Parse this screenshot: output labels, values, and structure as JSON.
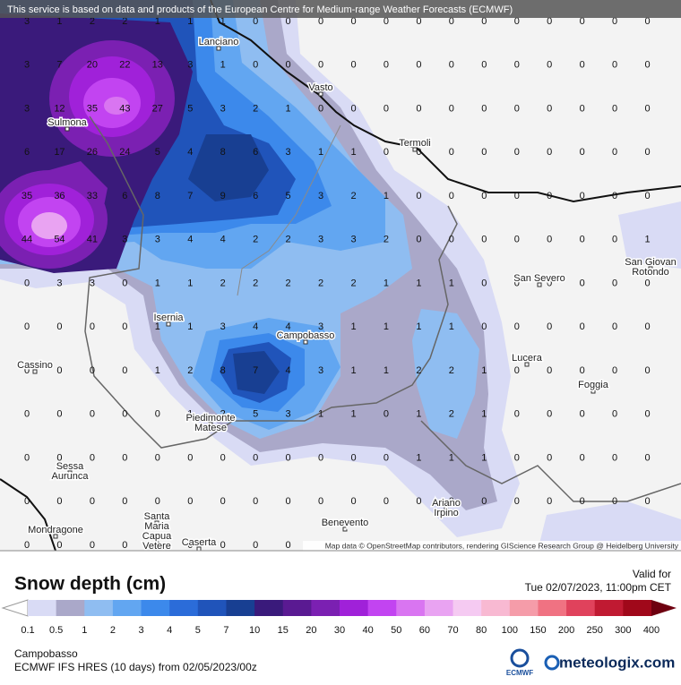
{
  "header": {
    "notice": "This service is based on data and products of the European Centre for Medium-range Weather Forecasts (ECMWF)"
  },
  "map": {
    "grid": {
      "rows": [
        [
          3,
          1,
          2,
          2,
          1,
          1,
          1,
          0,
          0,
          0,
          0,
          0,
          0,
          0,
          0,
          0,
          0,
          0,
          0,
          0
        ],
        [
          3,
          7,
          20,
          22,
          13,
          3,
          1,
          0,
          0,
          0,
          0,
          0,
          0,
          0,
          0,
          0,
          0,
          0,
          0,
          0
        ],
        [
          3,
          12,
          35,
          43,
          27,
          5,
          3,
          2,
          1,
          0,
          0,
          0,
          0,
          0,
          0,
          0,
          0,
          0,
          0,
          0
        ],
        [
          6,
          17,
          26,
          24,
          5,
          4,
          8,
          6,
          3,
          1,
          1,
          0,
          0,
          0,
          0,
          0,
          0,
          0,
          0,
          0
        ],
        [
          35,
          36,
          33,
          6,
          8,
          7,
          9,
          6,
          5,
          3,
          2,
          1,
          0,
          0,
          0,
          0,
          0,
          0,
          0,
          0
        ],
        [
          44,
          54,
          41,
          3,
          3,
          4,
          4,
          2,
          2,
          3,
          3,
          2,
          0,
          0,
          0,
          0,
          0,
          0,
          0,
          1
        ],
        [
          0,
          3,
          3,
          0,
          1,
          1,
          2,
          2,
          2,
          2,
          2,
          1,
          1,
          1,
          0,
          0,
          0,
          0,
          0,
          0
        ],
        [
          0,
          0,
          0,
          0,
          1,
          1,
          3,
          4,
          4,
          3,
          1,
          1,
          1,
          1,
          0,
          0,
          0,
          0,
          0,
          0
        ],
        [
          0,
          0,
          0,
          0,
          1,
          2,
          8,
          7,
          4,
          3,
          1,
          1,
          2,
          2,
          1,
          0,
          0,
          0,
          0,
          0
        ],
        [
          0,
          0,
          0,
          0,
          0,
          1,
          2,
          5,
          3,
          1,
          1,
          0,
          1,
          2,
          1,
          0,
          0,
          0,
          0,
          0
        ],
        [
          0,
          0,
          0,
          0,
          0,
          0,
          0,
          0,
          0,
          0,
          0,
          0,
          1,
          1,
          1,
          0,
          0,
          0,
          0,
          0
        ],
        [
          0,
          0,
          0,
          0,
          0,
          0,
          0,
          0,
          0,
          0,
          0,
          0,
          0,
          0,
          0,
          0,
          0,
          0,
          0,
          0
        ],
        [
          0,
          0,
          0,
          0,
          0,
          0,
          0,
          0,
          0
        ]
      ]
    },
    "cities": [
      {
        "label": [
          "Lanciano"
        ]
      },
      {
        "label": [
          "Vasto"
        ]
      },
      {
        "label": [
          "Termoli"
        ]
      },
      {
        "label": [
          "Sulmona"
        ]
      },
      {
        "label": [
          "San Severo"
        ]
      },
      {
        "label": [
          "San Giovan",
          "Rotondo"
        ]
      },
      {
        "label": [
          "Isernia"
        ]
      },
      {
        "label": [
          "Campobasso"
        ]
      },
      {
        "label": [
          "Cassino"
        ]
      },
      {
        "label": [
          "Lucera"
        ]
      },
      {
        "label": [
          "Foggia"
        ]
      },
      {
        "label": [
          "Piedimonte",
          "Matese"
        ]
      },
      {
        "label": [
          "Sessa",
          "Aurunca"
        ]
      },
      {
        "label": [
          "Ariano",
          "Irpino"
        ]
      },
      {
        "label": [
          "Santa",
          "Maria",
          "Capua",
          "Vetere"
        ]
      },
      {
        "label": [
          "Mondragone"
        ]
      },
      {
        "label": [
          "Benevento"
        ]
      },
      {
        "label": [
          "Caserta"
        ]
      }
    ],
    "attribution": "Map data © OpenStreetMap contributors, rendering GIScience Research Group @ Heidelberg University"
  },
  "legend": {
    "title": "Snow depth (cm)",
    "valid_label": "Valid for",
    "valid_time": "Tue 02/07/2023, 11:00pm CET",
    "levels": [
      0.1,
      0.5,
      1,
      2,
      3,
      4,
      5,
      7,
      10,
      15,
      20,
      30,
      40,
      50,
      60,
      70,
      80,
      100,
      150,
      200,
      250,
      300,
      400
    ],
    "colors": [
      "#d9dbf5",
      "#aaa8c9",
      "#8fbdf1",
      "#62a6f1",
      "#3c89eb",
      "#2b6cd9",
      "#2054ba",
      "#183f92",
      "#3a1a7b",
      "#5a1a92",
      "#7b20b2",
      "#a021d9",
      "#c244f1",
      "#d975f1",
      "#e9a3f2",
      "#f5caf2",
      "#f8b9d2",
      "#f59ca9",
      "#f07282",
      "#e0425c",
      "#c01a32",
      "#a0081a"
    ],
    "under_color": "#ffffff",
    "over_color": "#6e0010"
  },
  "footer": {
    "location": "Campobasso",
    "model": "ECMWF IFS HRES (10 days) from 02/05/2023/00z",
    "brand_ecmwf": "ECMWF",
    "brand_site": "meteologix.com"
  }
}
